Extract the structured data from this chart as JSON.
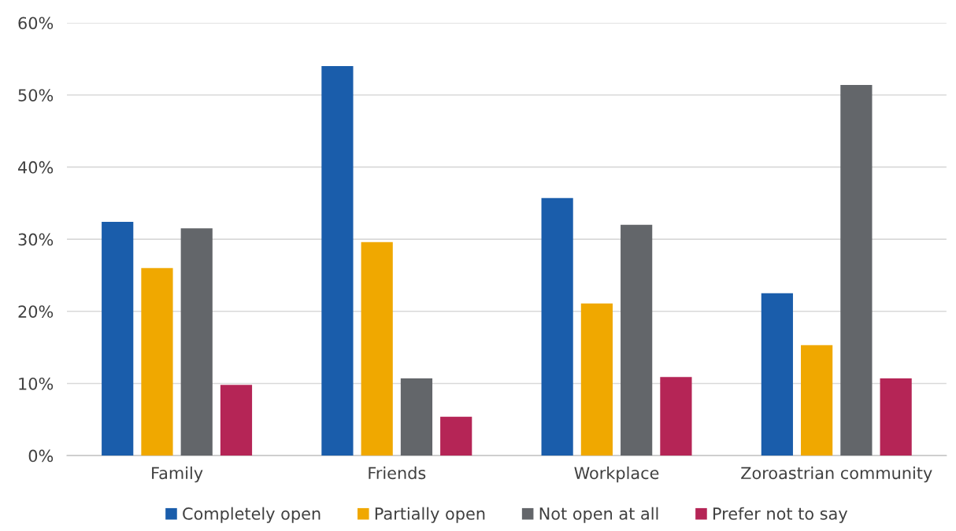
{
  "chart_data": {
    "type": "bar",
    "categories": [
      "Family",
      "Friends",
      "Workplace",
      "Zoroastrian community"
    ],
    "series": [
      {
        "name": "Completely open",
        "color": "#1a5dab",
        "values": [
          32.4,
          54.0,
          35.7,
          22.5
        ]
      },
      {
        "name": "Partially open",
        "color": "#f0a800",
        "values": [
          26.0,
          29.6,
          21.1,
          15.3
        ]
      },
      {
        "name": "Not open at all",
        "color": "#63666a",
        "values": [
          31.5,
          10.7,
          32.0,
          51.4
        ]
      },
      {
        "name": "Prefer not to say",
        "color": "#b52556",
        "values": [
          9.8,
          5.4,
          10.9,
          10.7
        ]
      }
    ],
    "ylim": [
      0,
      60
    ],
    "yticks": [
      {
        "value": 0,
        "label": "0%"
      },
      {
        "value": 10,
        "label": "10%"
      },
      {
        "value": 20,
        "label": "20%"
      },
      {
        "value": 30,
        "label": "30%"
      },
      {
        "value": 40,
        "label": "40%"
      },
      {
        "value": 50,
        "label": "50%"
      },
      {
        "value": 60,
        "label": "60%"
      }
    ],
    "grid": "y",
    "legend": "bottom"
  }
}
